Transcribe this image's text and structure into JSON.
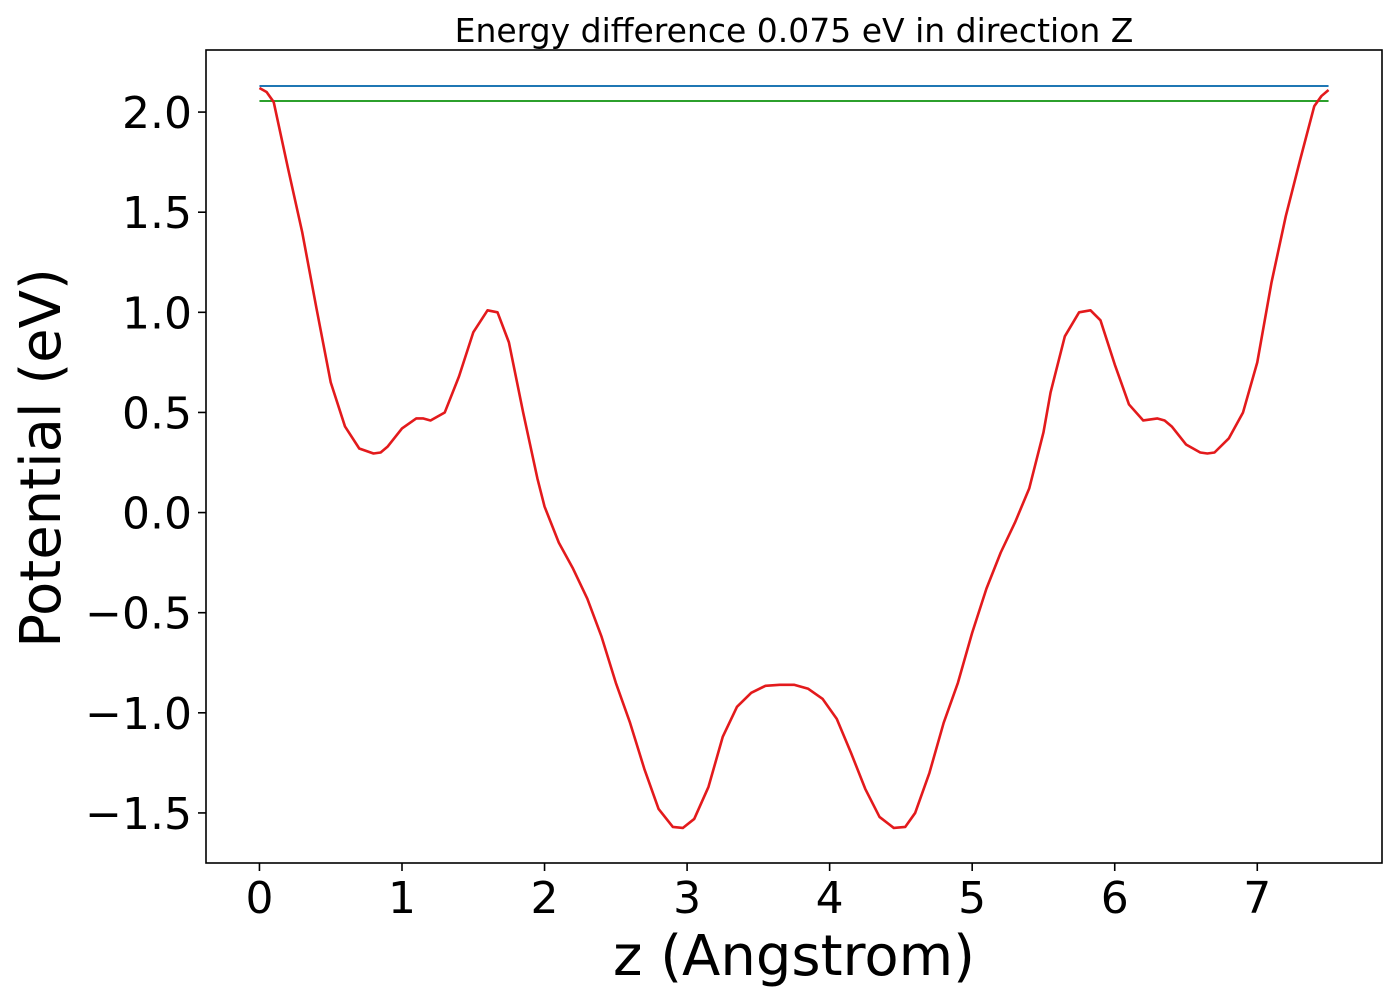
{
  "chart_data": {
    "type": "line",
    "title": "Energy difference 0.075 eV in direction Z",
    "xlabel": "z (Angstrom)",
    "ylabel": "Potential (eV)",
    "xlim": [
      -0.375,
      7.875
    ],
    "ylim": [
      -1.75,
      2.31
    ],
    "x_ticks": [
      0,
      1,
      2,
      3,
      4,
      5,
      6,
      7
    ],
    "x_tick_labels": [
      "0",
      "1",
      "2",
      "3",
      "4",
      "5",
      "6",
      "7"
    ],
    "y_ticks": [
      2.0,
      1.5,
      1.0,
      0.5,
      0.0,
      -0.5,
      -1.0,
      -1.5
    ],
    "y_tick_labels": [
      "2.0",
      "1.5",
      "1.0",
      "0.5",
      "0.0",
      "−0.5",
      "−1.0",
      "−1.5"
    ],
    "grid": false,
    "series": [
      {
        "color": "#1f77b4",
        "x": [
          0,
          7.5
        ],
        "y": [
          2.13,
          2.13
        ]
      },
      {
        "color": "#2ca02c",
        "x": [
          0,
          7.5
        ],
        "y": [
          2.055,
          2.055
        ]
      },
      {
        "color": "#e31a1c",
        "x": [
          0,
          0.05,
          0.1,
          0.2,
          0.3,
          0.4,
          0.5,
          0.6,
          0.7,
          0.8,
          0.85,
          0.9,
          1.0,
          1.1,
          1.15,
          1.2,
          1.3,
          1.4,
          1.5,
          1.6,
          1.67,
          1.75,
          1.85,
          1.95,
          2.0,
          2.1,
          2.2,
          2.3,
          2.4,
          2.5,
          2.6,
          2.7,
          2.8,
          2.9,
          2.97,
          3.05,
          3.15,
          3.25,
          3.35,
          3.45,
          3.55,
          3.65,
          3.75,
          3.85,
          3.95,
          4.05,
          4.15,
          4.25,
          4.35,
          4.45,
          4.53,
          4.6,
          4.7,
          4.8,
          4.9,
          5.0,
          5.1,
          5.2,
          5.3,
          5.4,
          5.5,
          5.55,
          5.65,
          5.75,
          5.83,
          5.9,
          6.0,
          6.1,
          6.2,
          6.3,
          6.35,
          6.4,
          6.5,
          6.6,
          6.65,
          6.7,
          6.8,
          6.9,
          7.0,
          7.1,
          7.2,
          7.3,
          7.4,
          7.45,
          7.5
        ],
        "y": [
          2.12,
          2.1,
          2.05,
          1.72,
          1.4,
          1.02,
          0.65,
          0.43,
          0.32,
          0.295,
          0.3,
          0.33,
          0.42,
          0.47,
          0.47,
          0.46,
          0.5,
          0.68,
          0.9,
          1.01,
          1.0,
          0.85,
          0.5,
          0.17,
          0.03,
          -0.15,
          -0.28,
          -0.43,
          -0.62,
          -0.85,
          -1.05,
          -1.28,
          -1.48,
          -1.57,
          -1.575,
          -1.53,
          -1.37,
          -1.12,
          -0.97,
          -0.9,
          -0.865,
          -0.86,
          -0.86,
          -0.88,
          -0.93,
          -1.03,
          -1.2,
          -1.38,
          -1.52,
          -1.575,
          -1.57,
          -1.5,
          -1.3,
          -1.05,
          -0.85,
          -0.6,
          -0.38,
          -0.2,
          -0.05,
          0.12,
          0.4,
          0.6,
          0.88,
          1.0,
          1.01,
          0.96,
          0.74,
          0.54,
          0.46,
          0.47,
          0.46,
          0.43,
          0.34,
          0.3,
          0.295,
          0.3,
          0.37,
          0.5,
          0.75,
          1.15,
          1.48,
          1.76,
          2.03,
          2.08,
          2.11
        ]
      }
    ]
  }
}
